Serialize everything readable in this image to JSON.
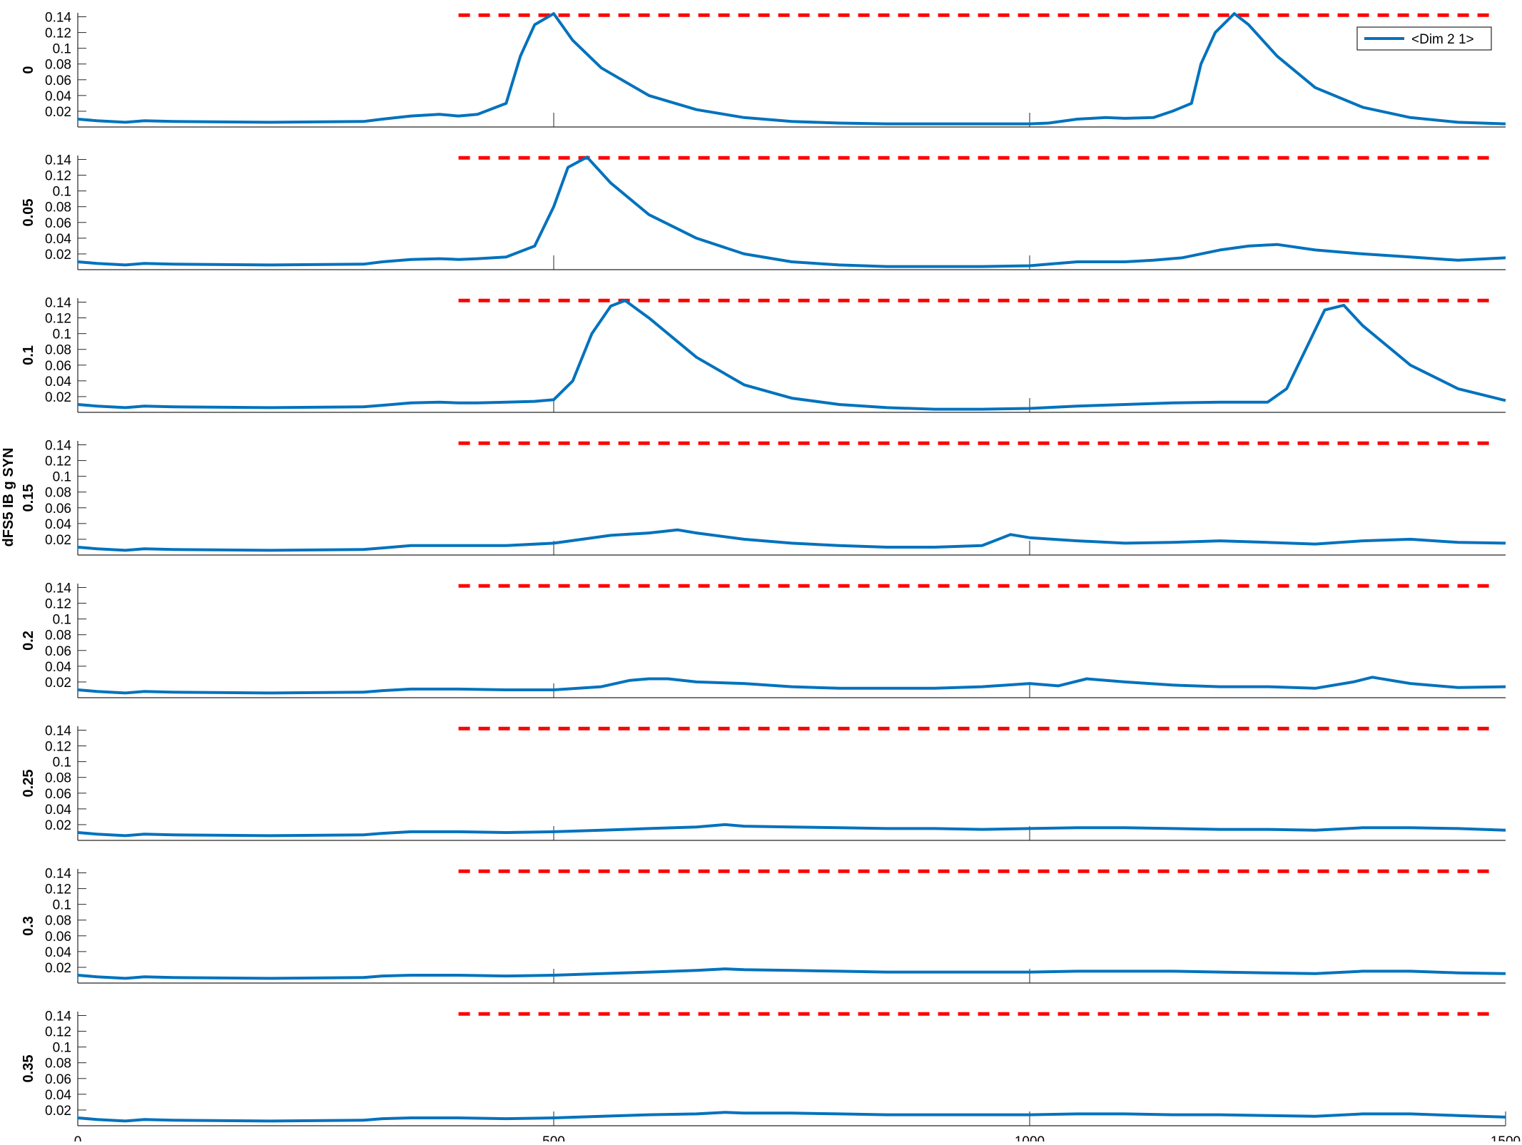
{
  "figure": {
    "ylabel": "dFS5 IB g SYN",
    "legend_entry": "<Dim 2 1>"
  },
  "colors": {
    "series": "#0072BD",
    "threshold": "#FF0000",
    "axis": "#262626",
    "legend_box": "#262626",
    "background": "#FFFFFF"
  },
  "chart_data": [
    {
      "type": "line",
      "row_label": "0",
      "xlim": [
        0,
        1500
      ],
      "ylim": [
        0,
        0.145
      ],
      "xticks": [
        "500",
        "1000"
      ],
      "yticks": [
        "0.02",
        "0.04",
        "0.06",
        "0.08",
        "0.1",
        "0.12",
        "0.14"
      ],
      "threshold": {
        "value": 0.142,
        "x_start": 400,
        "x_end": 1490,
        "style": "dashed"
      },
      "series": [
        {
          "name": "<Dim 2 1>",
          "x": [
            0,
            20,
            50,
            70,
            100,
            200,
            300,
            320,
            350,
            380,
            400,
            420,
            450,
            465,
            480,
            500,
            520,
            550,
            600,
            650,
            700,
            750,
            800,
            850,
            900,
            950,
            1000,
            1020,
            1050,
            1080,
            1100,
            1130,
            1150,
            1170,
            1180,
            1195,
            1215,
            1230,
            1260,
            1300,
            1350,
            1400,
            1450,
            1500
          ],
          "y": [
            0.01,
            0.008,
            0.006,
            0.008,
            0.007,
            0.006,
            0.007,
            0.01,
            0.014,
            0.016,
            0.014,
            0.016,
            0.03,
            0.09,
            0.13,
            0.144,
            0.11,
            0.075,
            0.04,
            0.022,
            0.012,
            0.007,
            0.005,
            0.004,
            0.004,
            0.004,
            0.004,
            0.005,
            0.01,
            0.012,
            0.011,
            0.012,
            0.02,
            0.03,
            0.08,
            0.12,
            0.144,
            0.13,
            0.09,
            0.05,
            0.025,
            0.012,
            0.006,
            0.004
          ]
        }
      ],
      "legend": {
        "placement": "top-right"
      }
    },
    {
      "type": "line",
      "row_label": "0.05",
      "xlim": [
        0,
        1500
      ],
      "ylim": [
        0,
        0.145
      ],
      "xticks": [
        "500",
        "1000"
      ],
      "yticks": [
        "0.02",
        "0.04",
        "0.06",
        "0.08",
        "0.1",
        "0.12",
        "0.14"
      ],
      "threshold": {
        "value": 0.142,
        "x_start": 400,
        "x_end": 1490,
        "style": "dashed"
      },
      "series": [
        {
          "name": "<Dim 2 1>",
          "x": [
            0,
            20,
            50,
            70,
            100,
            200,
            300,
            320,
            350,
            380,
            400,
            420,
            450,
            480,
            500,
            515,
            535,
            560,
            600,
            650,
            700,
            750,
            800,
            850,
            900,
            950,
            1000,
            1020,
            1050,
            1100,
            1130,
            1160,
            1180,
            1200,
            1230,
            1260,
            1300,
            1350,
            1400,
            1450,
            1500
          ],
          "y": [
            0.01,
            0.008,
            0.006,
            0.008,
            0.007,
            0.006,
            0.007,
            0.01,
            0.013,
            0.014,
            0.013,
            0.014,
            0.016,
            0.03,
            0.08,
            0.13,
            0.143,
            0.11,
            0.07,
            0.04,
            0.02,
            0.01,
            0.006,
            0.004,
            0.004,
            0.004,
            0.005,
            0.007,
            0.01,
            0.01,
            0.012,
            0.015,
            0.02,
            0.025,
            0.03,
            0.032,
            0.025,
            0.02,
            0.016,
            0.012,
            0.015
          ]
        }
      ],
      "legend": null
    },
    {
      "type": "line",
      "row_label": "0.1",
      "xlim": [
        0,
        1500
      ],
      "ylim": [
        0,
        0.145
      ],
      "xticks": [
        "500",
        "1000"
      ],
      "yticks": [
        "0.02",
        "0.04",
        "0.06",
        "0.08",
        "0.1",
        "0.12",
        "0.14"
      ],
      "threshold": {
        "value": 0.142,
        "x_start": 400,
        "x_end": 1490,
        "style": "dashed"
      },
      "series": [
        {
          "name": "<Dim 2 1>",
          "x": [
            0,
            20,
            50,
            70,
            100,
            200,
            300,
            320,
            350,
            380,
            400,
            420,
            450,
            480,
            500,
            520,
            540,
            560,
            575,
            600,
            650,
            700,
            750,
            800,
            850,
            900,
            950,
            1000,
            1050,
            1100,
            1150,
            1200,
            1250,
            1270,
            1290,
            1310,
            1330,
            1350,
            1400,
            1450,
            1500
          ],
          "y": [
            0.01,
            0.008,
            0.006,
            0.008,
            0.007,
            0.006,
            0.007,
            0.009,
            0.012,
            0.013,
            0.012,
            0.012,
            0.013,
            0.014,
            0.016,
            0.04,
            0.1,
            0.135,
            0.142,
            0.12,
            0.07,
            0.035,
            0.018,
            0.01,
            0.006,
            0.004,
            0.004,
            0.005,
            0.008,
            0.01,
            0.012,
            0.013,
            0.013,
            0.03,
            0.08,
            0.13,
            0.136,
            0.11,
            0.06,
            0.03,
            0.015
          ]
        }
      ],
      "legend": null
    },
    {
      "type": "line",
      "row_label": "0.15",
      "xlim": [
        0,
        1500
      ],
      "ylim": [
        0,
        0.145
      ],
      "xticks": [
        "500",
        "1000"
      ],
      "yticks": [
        "0.02",
        "0.04",
        "0.06",
        "0.08",
        "0.1",
        "0.12",
        "0.14"
      ],
      "threshold": {
        "value": 0.142,
        "x_start": 400,
        "x_end": 1490,
        "style": "dashed"
      },
      "series": [
        {
          "name": "<Dim 2 1>",
          "x": [
            0,
            20,
            50,
            70,
            100,
            200,
            300,
            320,
            350,
            400,
            450,
            500,
            530,
            560,
            600,
            630,
            650,
            700,
            750,
            800,
            850,
            900,
            950,
            980,
            1000,
            1050,
            1100,
            1150,
            1200,
            1250,
            1300,
            1350,
            1400,
            1450,
            1500
          ],
          "y": [
            0.01,
            0.008,
            0.006,
            0.008,
            0.007,
            0.006,
            0.007,
            0.009,
            0.012,
            0.012,
            0.012,
            0.015,
            0.02,
            0.025,
            0.028,
            0.032,
            0.028,
            0.02,
            0.015,
            0.012,
            0.01,
            0.01,
            0.012,
            0.026,
            0.022,
            0.018,
            0.015,
            0.016,
            0.018,
            0.016,
            0.014,
            0.018,
            0.02,
            0.016,
            0.015
          ]
        }
      ],
      "legend": null
    },
    {
      "type": "line",
      "row_label": "0.2",
      "xlim": [
        0,
        1500
      ],
      "ylim": [
        0,
        0.145
      ],
      "xticks": [
        "500",
        "1000"
      ],
      "yticks": [
        "0.02",
        "0.04",
        "0.06",
        "0.08",
        "0.1",
        "0.12",
        "0.14"
      ],
      "threshold": {
        "value": 0.142,
        "x_start": 400,
        "x_end": 1490,
        "style": "dashed"
      },
      "series": [
        {
          "name": "<Dim 2 1>",
          "x": [
            0,
            20,
            50,
            70,
            100,
            200,
            300,
            320,
            350,
            400,
            450,
            500,
            550,
            580,
            600,
            620,
            650,
            700,
            750,
            800,
            850,
            900,
            950,
            1000,
            1030,
            1060,
            1100,
            1150,
            1200,
            1250,
            1300,
            1340,
            1360,
            1400,
            1450,
            1500
          ],
          "y": [
            0.01,
            0.008,
            0.006,
            0.008,
            0.007,
            0.006,
            0.007,
            0.009,
            0.011,
            0.011,
            0.01,
            0.01,
            0.014,
            0.022,
            0.024,
            0.024,
            0.02,
            0.018,
            0.014,
            0.012,
            0.012,
            0.012,
            0.014,
            0.018,
            0.015,
            0.024,
            0.02,
            0.016,
            0.014,
            0.014,
            0.012,
            0.02,
            0.026,
            0.018,
            0.013,
            0.014
          ]
        }
      ],
      "legend": null
    },
    {
      "type": "line",
      "row_label": "0.25",
      "xlim": [
        0,
        1500
      ],
      "ylim": [
        0,
        0.145
      ],
      "xticks": [
        "500",
        "1000"
      ],
      "yticks": [
        "0.02",
        "0.04",
        "0.06",
        "0.08",
        "0.1",
        "0.12",
        "0.14"
      ],
      "threshold": {
        "value": 0.142,
        "x_start": 400,
        "x_end": 1490,
        "style": "dashed"
      },
      "series": [
        {
          "name": "<Dim 2 1>",
          "x": [
            0,
            20,
            50,
            70,
            100,
            200,
            300,
            320,
            350,
            400,
            450,
            500,
            550,
            600,
            650,
            680,
            700,
            750,
            800,
            850,
            900,
            950,
            1000,
            1050,
            1100,
            1150,
            1200,
            1250,
            1300,
            1350,
            1400,
            1450,
            1500
          ],
          "y": [
            0.01,
            0.008,
            0.006,
            0.008,
            0.007,
            0.006,
            0.007,
            0.009,
            0.011,
            0.011,
            0.01,
            0.011,
            0.013,
            0.015,
            0.017,
            0.02,
            0.018,
            0.017,
            0.016,
            0.015,
            0.015,
            0.014,
            0.015,
            0.016,
            0.016,
            0.015,
            0.014,
            0.014,
            0.013,
            0.016,
            0.016,
            0.015,
            0.013
          ]
        }
      ],
      "legend": null
    },
    {
      "type": "line",
      "row_label": "0.3",
      "xlim": [
        0,
        1500
      ],
      "ylim": [
        0,
        0.145
      ],
      "xticks": [
        "500",
        "1000"
      ],
      "yticks": [
        "0.02",
        "0.04",
        "0.06",
        "0.08",
        "0.1",
        "0.12",
        "0.14"
      ],
      "threshold": {
        "value": 0.142,
        "x_start": 400,
        "x_end": 1490,
        "style": "dashed"
      },
      "series": [
        {
          "name": "<Dim 2 1>",
          "x": [
            0,
            20,
            50,
            70,
            100,
            200,
            300,
            320,
            350,
            400,
            450,
            500,
            550,
            600,
            650,
            680,
            700,
            750,
            800,
            850,
            900,
            950,
            1000,
            1050,
            1100,
            1150,
            1200,
            1250,
            1300,
            1350,
            1400,
            1450,
            1500
          ],
          "y": [
            0.01,
            0.008,
            0.006,
            0.008,
            0.007,
            0.006,
            0.007,
            0.009,
            0.01,
            0.01,
            0.009,
            0.01,
            0.012,
            0.014,
            0.016,
            0.018,
            0.017,
            0.016,
            0.015,
            0.014,
            0.014,
            0.014,
            0.014,
            0.015,
            0.015,
            0.015,
            0.014,
            0.013,
            0.012,
            0.015,
            0.015,
            0.013,
            0.012
          ]
        }
      ],
      "legend": null
    },
    {
      "type": "line",
      "row_label": "0.35",
      "xlim": [
        0,
        1500
      ],
      "ylim": [
        0,
        0.145
      ],
      "xticks": [
        "0",
        "500",
        "1000",
        "1500"
      ],
      "yticks": [
        "0.02",
        "0.04",
        "0.06",
        "0.08",
        "0.1",
        "0.12",
        "0.14"
      ],
      "threshold": {
        "value": 0.142,
        "x_start": 400,
        "x_end": 1490,
        "style": "dashed"
      },
      "series": [
        {
          "name": "<Dim 2 1>",
          "x": [
            0,
            20,
            50,
            70,
            100,
            200,
            300,
            320,
            350,
            400,
            450,
            500,
            550,
            600,
            650,
            680,
            700,
            750,
            800,
            850,
            900,
            950,
            1000,
            1050,
            1100,
            1150,
            1200,
            1250,
            1300,
            1350,
            1400,
            1450,
            1500
          ],
          "y": [
            0.01,
            0.008,
            0.006,
            0.008,
            0.007,
            0.006,
            0.007,
            0.009,
            0.01,
            0.01,
            0.009,
            0.01,
            0.012,
            0.014,
            0.015,
            0.017,
            0.016,
            0.016,
            0.015,
            0.014,
            0.014,
            0.014,
            0.014,
            0.015,
            0.015,
            0.014,
            0.014,
            0.013,
            0.012,
            0.015,
            0.015,
            0.013,
            0.011
          ]
        }
      ],
      "legend": null
    }
  ]
}
